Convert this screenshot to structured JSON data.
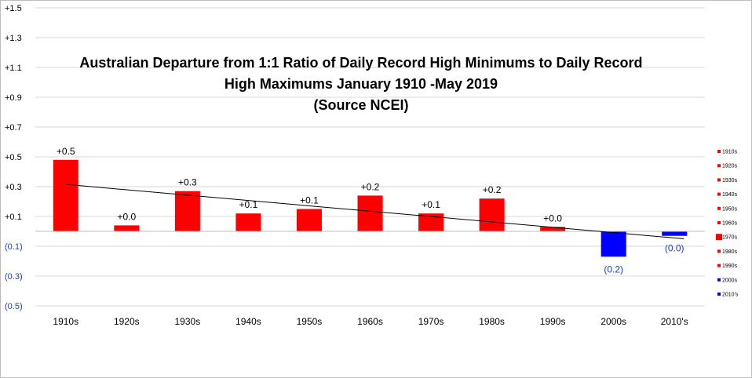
{
  "chart_data": {
    "type": "bar",
    "title_lines": [
      "Australian Departure from 1:1 Ratio of Daily Record High Minimums to Daily Record",
      "High Maximums January 1910 -May 2019",
      "(Source NCEI)"
    ],
    "categories": [
      "1910s",
      "1920s",
      "1930s",
      "1940s",
      "1950s",
      "1960s",
      "1970s",
      "1980s",
      "1990s",
      "2000s",
      "2010's"
    ],
    "values": [
      0.48,
      0.04,
      0.27,
      0.12,
      0.15,
      0.24,
      0.12,
      0.22,
      0.03,
      -0.17,
      -0.03
    ],
    "data_labels": [
      "+0.5",
      "+0.0",
      "+0.3",
      "+0.1",
      "+0.1",
      "+0.2",
      "+0.1",
      "+0.2",
      "+0.0",
      "(0.2)",
      "(0.0)"
    ],
    "y_ticks": [
      1.5,
      1.3,
      1.1,
      0.9,
      0.7,
      0.5,
      0.3,
      0.1,
      -0.1,
      -0.3,
      -0.5
    ],
    "y_tick_labels": [
      "+1.5",
      "+1.3",
      "+1.1",
      "+0.9",
      "+0.7",
      "+0.5",
      "+0.3",
      "+0.1",
      "(0.1)",
      "(0.3)",
      "(0.5)"
    ],
    "ylim": [
      -0.5,
      1.5
    ],
    "trendline": {
      "start": 0.315,
      "end": -0.05
    },
    "grid": "horizontal",
    "legend": {
      "placement": "right",
      "entries": [
        "1910s",
        "1920s",
        "1930s",
        "1940s",
        "1950s",
        "1960s",
        "1970s",
        "1980s",
        "1990s",
        "2000s",
        "2010's"
      ]
    },
    "colors": {
      "positive": "#ff0000",
      "negative": "#0000ff",
      "trend": "#000000",
      "grid": "#d9d9d9",
      "axis_label": "#000000"
    }
  }
}
